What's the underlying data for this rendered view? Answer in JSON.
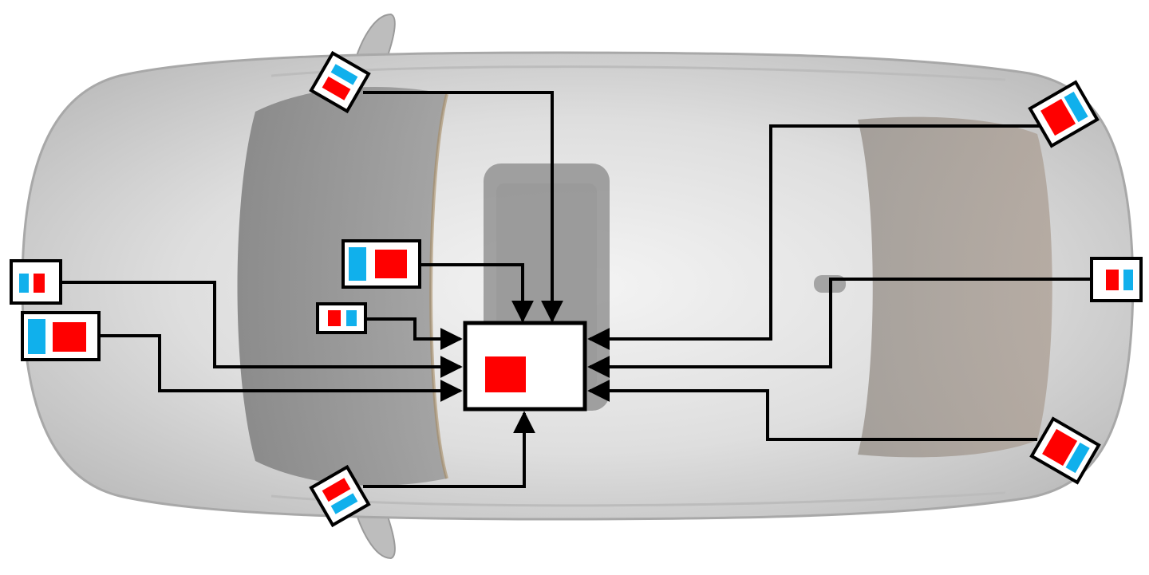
{
  "diagram": {
    "subject": "car-top-view",
    "central_unit": {
      "icon": "controller-box",
      "color": "#ff0000"
    },
    "sensors": [
      {
        "id": "front-left-small",
        "icon": "camera-radar-sensor"
      },
      {
        "id": "front-left-large",
        "icon": "camera-radar-sensor"
      },
      {
        "id": "cabin-large",
        "icon": "camera-radar-sensor"
      },
      {
        "id": "cabin-small",
        "icon": "camera-radar-sensor"
      },
      {
        "id": "mirror-left",
        "icon": "camera-radar-sensor"
      },
      {
        "id": "mirror-right",
        "icon": "camera-radar-sensor"
      },
      {
        "id": "rear-left-corner",
        "icon": "camera-radar-sensor"
      },
      {
        "id": "rear-center",
        "icon": "camera-radar-sensor"
      },
      {
        "id": "rear-right-corner",
        "icon": "camera-radar-sensor"
      }
    ],
    "colors": {
      "red": "#ff0000",
      "blue": "#10b0ec",
      "outline": "#000000",
      "car_body": "#d0d0d0",
      "window": "#8a8a8a",
      "trunk": "#a89a90"
    }
  }
}
